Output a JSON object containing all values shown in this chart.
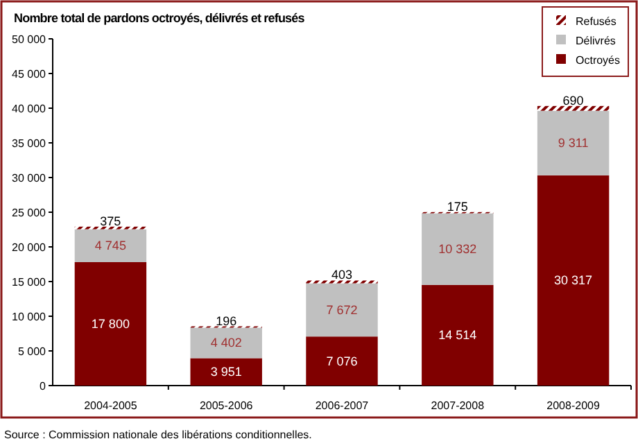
{
  "chart_data": {
    "type": "bar",
    "stacked": true,
    "title": "Nombre total de pardons octroyés, délivrés et refusés",
    "categories": [
      "2004-2005",
      "2005-2006",
      "2006-2007",
      "2007-2008",
      "2008-2009"
    ],
    "series": [
      {
        "name": "Octroyés",
        "color": "#800000",
        "values": [
          17800,
          3951,
          7076,
          14514,
          30317
        ],
        "value_labels": [
          "17 800",
          "3 951",
          "7 076",
          "14 514",
          "30 317"
        ]
      },
      {
        "name": "Délivrés",
        "color": "#c0c0c0",
        "values": [
          4745,
          4402,
          7672,
          10332,
          9311
        ],
        "value_labels": [
          "4 745",
          "4 402",
          "7 672",
          "10 332",
          "9 311"
        ]
      },
      {
        "name": "Refusés",
        "color": "#800000",
        "values": [
          375,
          196,
          403,
          175,
          690
        ],
        "value_labels": [
          "375",
          "196",
          "403",
          "175",
          "690"
        ]
      }
    ],
    "ylim": [
      0,
      50000
    ],
    "yticks": [
      0,
      {
        "value": 5000,
        "label": "5 000"
      },
      {
        "value": 10000,
        "label": "10 000"
      },
      {
        "value": 15000,
        "label": "15 000"
      },
      {
        "value": 20000,
        "label": "20 000"
      },
      {
        "value": 25000,
        "label": "25 000"
      },
      {
        "value": 30000,
        "label": "30 000"
      },
      {
        "value": 35000,
        "label": "35 000"
      },
      {
        "value": 40000,
        "label": "40 000"
      },
      {
        "value": 45000,
        "label": "45 000"
      },
      {
        "value": 50000,
        "label": "50 000"
      }
    ],
    "grid": false,
    "legend": "top right",
    "annotations": [
      "Source : Commission nationale des libérations conditionnelles."
    ]
  }
}
